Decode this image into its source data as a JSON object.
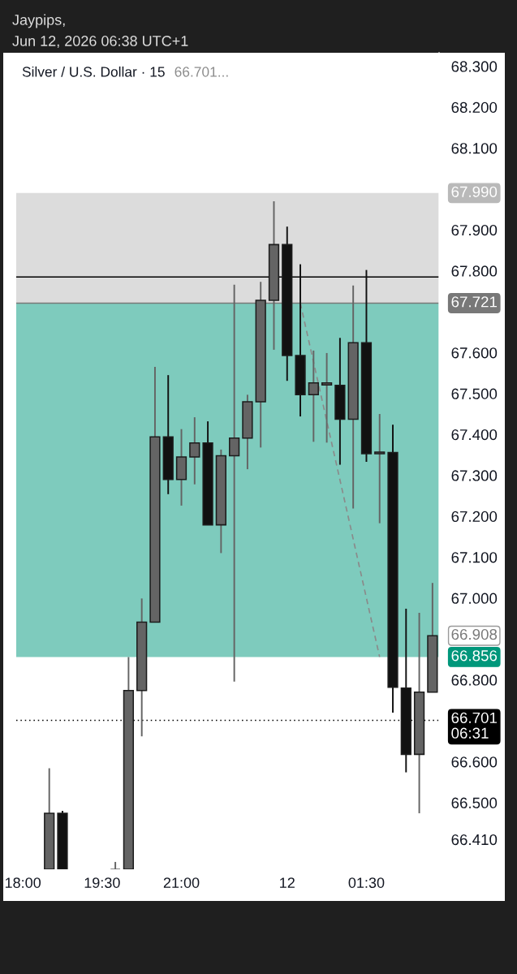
{
  "chart_data": {
    "type": "candlestick",
    "title": "Silver / U.S. Dollar · 15",
    "subtitle": "66.701...",
    "annotations": [
      "Jaypips,",
      "Jun 12, 2026 06:38 UTC+1"
    ],
    "categories": [
      "18:00",
      null,
      null,
      null,
      null,
      null,
      "19:30",
      null,
      null,
      null,
      null,
      null,
      "21:00",
      null,
      null,
      null,
      null,
      null,
      null,
      null,
      "12",
      null,
      null,
      null,
      null,
      null,
      "01:30",
      null,
      null,
      null,
      null,
      null
    ],
    "ohlc": [
      null,
      null,
      [
        66.337,
        66.584,
        66.337,
        66.474
      ],
      [
        66.474,
        66.48,
        66.337,
        66.337
      ],
      null,
      null,
      null,
      [
        66.337,
        66.355,
        66.337,
        66.337
      ],
      [
        66.337,
        66.856,
        66.337,
        66.774
      ],
      [
        66.774,
        66.999,
        66.662,
        66.941
      ],
      [
        66.941,
        67.565,
        66.941,
        67.394
      ],
      [
        67.394,
        67.545,
        67.254,
        67.29
      ],
      [
        67.29,
        67.413,
        67.226,
        67.345
      ],
      [
        67.345,
        67.442,
        67.278,
        67.379
      ],
      [
        67.379,
        67.432,
        67.179,
        67.179
      ],
      [
        67.179,
        67.363,
        67.11,
        67.348
      ],
      [
        67.348,
        67.766,
        66.796,
        67.391
      ],
      [
        67.391,
        67.497,
        67.315,
        67.48
      ],
      [
        67.48,
        67.773,
        67.368,
        67.728
      ],
      [
        67.728,
        67.97,
        67.607,
        67.864
      ],
      [
        67.864,
        67.908,
        67.531,
        67.593
      ],
      [
        67.593,
        67.816,
        67.444,
        67.497
      ],
      [
        67.497,
        67.605,
        67.382,
        67.526
      ],
      [
        67.521,
        67.599,
        67.38,
        67.526
      ],
      [
        67.52,
        67.636,
        67.326,
        67.437
      ],
      [
        67.437,
        67.764,
        67.219,
        67.624
      ],
      [
        67.624,
        67.802,
        67.333,
        67.353
      ],
      [
        67.353,
        67.45,
        67.183,
        67.357
      ],
      [
        67.356,
        67.424,
        66.72,
        66.782
      ],
      [
        66.78,
        66.974,
        66.574,
        66.618
      ],
      [
        66.618,
        66.964,
        66.474,
        66.77
      ],
      [
        66.77,
        67.037,
        66.77,
        66.908
      ]
    ],
    "colors": [
      null,
      null,
      "#646464",
      "#111111",
      null,
      null,
      null,
      "#646464",
      "#646464",
      "#646464",
      "#646464",
      "#111111",
      "#646464",
      "#646464",
      "#111111",
      "#646464",
      "#646464",
      "#646464",
      "#646464",
      "#646464",
      "#111111",
      "#111111",
      "#646464",
      "#646464",
      "#111111",
      "#646464",
      "#111111",
      "#646464",
      "#111111",
      "#111111",
      "#646464",
      "#646464"
    ],
    "value_labels": [
      null,
      null,
      null,
      null,
      null,
      null,
      null,
      null,
      null,
      null,
      null,
      null,
      null,
      null,
      null,
      null,
      null,
      null,
      null,
      null,
      null,
      null,
      null,
      null,
      null,
      null,
      null,
      null,
      null,
      null,
      null,
      "66.908"
    ],
    "series": [
      {
        "type": "line",
        "values": [
          null,
          null,
          null,
          null,
          null,
          null,
          null,
          null,
          null,
          null,
          null,
          null,
          null,
          null,
          null,
          null,
          null,
          null,
          null,
          null,
          null,
          67.721,
          null,
          null,
          null,
          null,
          null,
          66.856,
          null,
          null,
          null,
          null
        ],
        "color": "#8a8a8a",
        "line_style": "dashed"
      }
    ],
    "ylim": [
      66.337,
      68.333
    ],
    "yticks": [
      {
        "value": 66.41,
        "label": "66.410"
      },
      {
        "value": 66.5,
        "label": "66.500"
      },
      {
        "value": 66.6,
        "label": "66.600"
      },
      {
        "value": 66.8,
        "label": "66.800"
      },
      {
        "value": 67.0,
        "label": "67.000"
      },
      {
        "value": 67.1,
        "label": "67.100"
      },
      {
        "value": 67.2,
        "label": "67.200"
      },
      {
        "value": 67.3,
        "label": "67.300"
      },
      {
        "value": 67.4,
        "label": "67.400"
      },
      {
        "value": 67.5,
        "label": "67.500"
      },
      {
        "value": 67.6,
        "label": "67.600"
      },
      {
        "value": 67.8,
        "label": "67.800"
      },
      {
        "value": 67.9,
        "label": "67.900"
      },
      {
        "value": 68.1,
        "label": "68.100"
      },
      {
        "value": 68.2,
        "label": "68.200"
      },
      {
        "value": 68.3,
        "label": "68.300"
      }
    ],
    "bands": [
      {
        "axis": "y",
        "from": 67.721,
        "to": 67.99,
        "label": "67.990",
        "color": "#dcdcdc"
      },
      {
        "axis": "y",
        "from": 67.721,
        "to": 66.856,
        "label": "66.856",
        "color": "#7ecbbd"
      }
    ],
    "ref_lines": [
      {
        "axis": "y",
        "value": 67.785,
        "color": "#000000"
      },
      {
        "axis": "y",
        "value": 67.721,
        "label": "67.721",
        "color": "#787878"
      },
      {
        "axis": "y",
        "value": 66.701,
        "label": "66.701\n06:31",
        "color": "#000000",
        "line_style": "dotted"
      }
    ]
  }
}
